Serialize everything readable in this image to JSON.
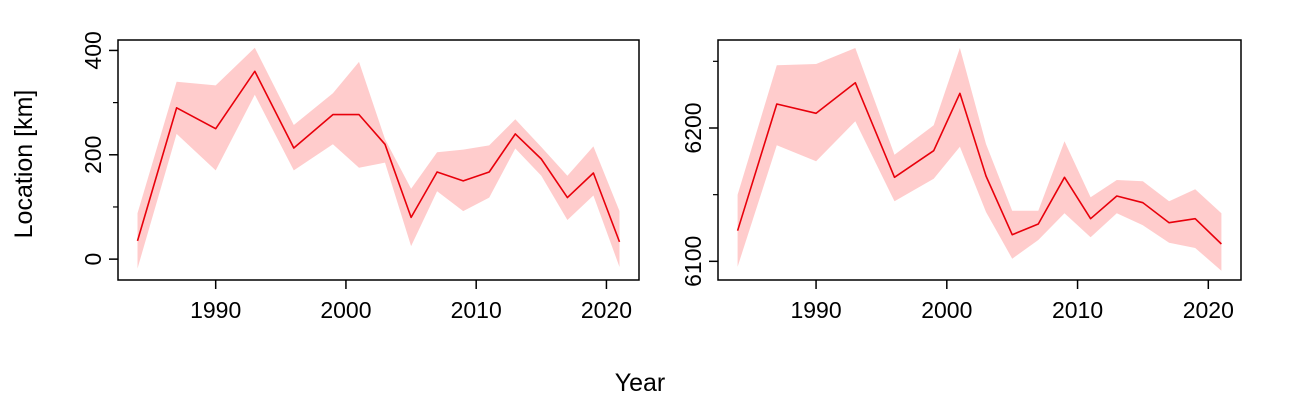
{
  "figure": {
    "xlabel": "Year",
    "ylabel": "Location [km]"
  },
  "chart_data": [
    {
      "type": "line",
      "xlabel": "",
      "ylabel": "",
      "xlim": [
        1982.5,
        2022.5
      ],
      "ylim": [
        -40,
        420
      ],
      "xticks": [
        1990,
        2000,
        2010,
        2020
      ],
      "yticks": [
        0,
        200,
        400
      ],
      "yminor": [
        100,
        300
      ],
      "grid": false,
      "series": [
        {
          "x": [
            1984,
            1987,
            1990,
            1993,
            1996,
            1999,
            2001,
            2003,
            2005,
            2007,
            2009,
            2011,
            2013,
            2015,
            2017,
            2019,
            2021
          ],
          "values": [
            35,
            290,
            250,
            360,
            213,
            277,
            277,
            220,
            80,
            167,
            150,
            167,
            240,
            192,
            118,
            165,
            33
          ],
          "lower": [
            -18,
            240,
            170,
            315,
            170,
            220,
            175,
            185,
            25,
            130,
            92,
            118,
            212,
            160,
            75,
            122,
            -15
          ],
          "upper": [
            88,
            340,
            333,
            405,
            257,
            318,
            378,
            230,
            135,
            205,
            210,
            218,
            268,
            215,
            160,
            216,
            92
          ]
        }
      ],
      "line_color": "#e8000b",
      "band_color": "#ffcccc"
    },
    {
      "type": "line",
      "xlabel": "",
      "ylabel": "",
      "xlim": [
        1982.5,
        2022.5
      ],
      "ylim": [
        6086,
        6266
      ],
      "xticks": [
        1990,
        2000,
        2010,
        2020
      ],
      "yticks": [
        6100,
        6200
      ],
      "yminor": [
        6150,
        6250
      ],
      "grid": false,
      "series": [
        {
          "x": [
            1984,
            1987,
            1990,
            1993,
            1996,
            1999,
            2001,
            2003,
            2005,
            2007,
            2009,
            2011,
            2013,
            2015,
            2017,
            2019,
            2021
          ],
          "values": [
            6123,
            6218,
            6211,
            6234,
            6163,
            6183,
            6226,
            6164,
            6120,
            6128,
            6163,
            6132,
            6149,
            6144,
            6129,
            6132,
            6113
          ],
          "lower": [
            6096,
            6187,
            6175,
            6205,
            6145,
            6162,
            6186,
            6137,
            6102,
            6116,
            6136,
            6118,
            6136,
            6127,
            6114,
            6110,
            6093
          ],
          "upper": [
            6150,
            6247,
            6248,
            6260,
            6180,
            6202,
            6260,
            6188,
            6138,
            6138,
            6190,
            6148,
            6161,
            6160,
            6145,
            6154,
            6136
          ]
        }
      ],
      "line_color": "#e8000b",
      "band_color": "#ffcccc"
    }
  ]
}
